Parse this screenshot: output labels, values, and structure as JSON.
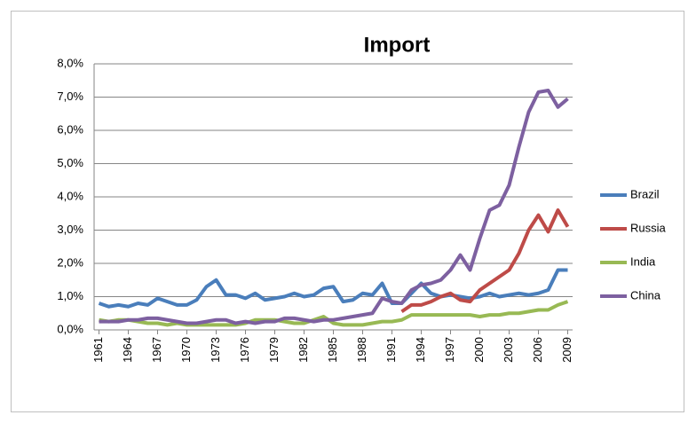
{
  "chart_data": {
    "type": "line",
    "title": "Import",
    "x": [
      1961,
      1962,
      1963,
      1964,
      1965,
      1966,
      1967,
      1968,
      1969,
      1970,
      1971,
      1972,
      1973,
      1974,
      1975,
      1976,
      1977,
      1978,
      1979,
      1980,
      1981,
      1982,
      1983,
      1984,
      1985,
      1986,
      1987,
      1988,
      1989,
      1990,
      1991,
      1992,
      1993,
      1994,
      1995,
      1996,
      1997,
      1998,
      1999,
      2000,
      2001,
      2002,
      2003,
      2004,
      2005,
      2006,
      2007,
      2008,
      2009
    ],
    "xlim": [
      1960.5,
      2009.5
    ],
    "xticks": [
      1961,
      1964,
      1967,
      1970,
      1973,
      1976,
      1979,
      1982,
      1985,
      1988,
      1991,
      1994,
      1997,
      2000,
      2003,
      2006,
      2009
    ],
    "ylim": [
      0,
      8
    ],
    "yticks": [
      {
        "value": 0,
        "label": "0,0%"
      },
      {
        "value": 1,
        "label": "1,0%"
      },
      {
        "value": 2,
        "label": "2,0%"
      },
      {
        "value": 3,
        "label": "3,0%"
      },
      {
        "value": 4,
        "label": "4,0%"
      },
      {
        "value": 5,
        "label": "5,0%"
      },
      {
        "value": 6,
        "label": "6,0%"
      },
      {
        "value": 7,
        "label": "7,0%"
      },
      {
        "value": 8,
        "label": "8,0%"
      }
    ],
    "grid": true,
    "legend": "right",
    "series": [
      {
        "name": "Brazil",
        "color": "#4a7ebb",
        "values": [
          0.8,
          0.7,
          0.75,
          0.7,
          0.8,
          0.75,
          0.95,
          0.85,
          0.75,
          0.75,
          0.9,
          1.3,
          1.5,
          1.05,
          1.05,
          0.95,
          1.1,
          0.9,
          0.95,
          1.0,
          1.1,
          1.0,
          1.05,
          1.25,
          1.3,
          0.85,
          0.9,
          1.1,
          1.05,
          1.4,
          0.8,
          0.8,
          1.1,
          1.4,
          1.1,
          1.0,
          1.05,
          1.0,
          0.95,
          1.0,
          1.1,
          1.0,
          1.05,
          1.1,
          1.05,
          1.1,
          1.2,
          1.8,
          1.8
        ]
      },
      {
        "name": "Russia",
        "color": "#be4b48",
        "values": [
          null,
          null,
          null,
          null,
          null,
          null,
          null,
          null,
          null,
          null,
          null,
          null,
          null,
          null,
          null,
          null,
          null,
          null,
          null,
          null,
          null,
          null,
          null,
          null,
          null,
          null,
          null,
          null,
          null,
          null,
          null,
          0.55,
          0.75,
          0.75,
          0.85,
          1.0,
          1.1,
          0.9,
          0.85,
          1.2,
          1.4,
          1.6,
          1.8,
          2.3,
          3.0,
          3.45,
          2.95,
          3.6,
          3.1
        ]
      },
      {
        "name": "India",
        "color": "#98b954",
        "values": [
          0.3,
          0.25,
          0.3,
          0.3,
          0.25,
          0.2,
          0.2,
          0.15,
          0.2,
          0.15,
          0.15,
          0.15,
          0.15,
          0.15,
          0.15,
          0.2,
          0.3,
          0.3,
          0.3,
          0.25,
          0.2,
          0.2,
          0.3,
          0.4,
          0.2,
          0.15,
          0.15,
          0.15,
          0.2,
          0.25,
          0.25,
          0.3,
          0.45,
          0.45,
          0.45,
          0.45,
          0.45,
          0.45,
          0.45,
          0.4,
          0.45,
          0.45,
          0.5,
          0.5,
          0.55,
          0.6,
          0.6,
          0.75,
          0.85
        ]
      },
      {
        "name": "China",
        "color": "#7d60a0",
        "values": [
          0.25,
          0.25,
          0.25,
          0.3,
          0.3,
          0.35,
          0.35,
          0.3,
          0.25,
          0.2,
          0.2,
          0.25,
          0.3,
          0.3,
          0.2,
          0.25,
          0.2,
          0.25,
          0.25,
          0.35,
          0.35,
          0.3,
          0.25,
          0.3,
          0.3,
          0.35,
          0.4,
          0.45,
          0.5,
          0.95,
          0.85,
          0.8,
          1.2,
          1.35,
          1.4,
          1.5,
          1.8,
          2.25,
          1.8,
          2.75,
          3.6,
          3.75,
          4.35,
          5.5,
          6.55,
          7.15,
          7.2,
          6.7,
          6.95
        ]
      }
    ]
  }
}
